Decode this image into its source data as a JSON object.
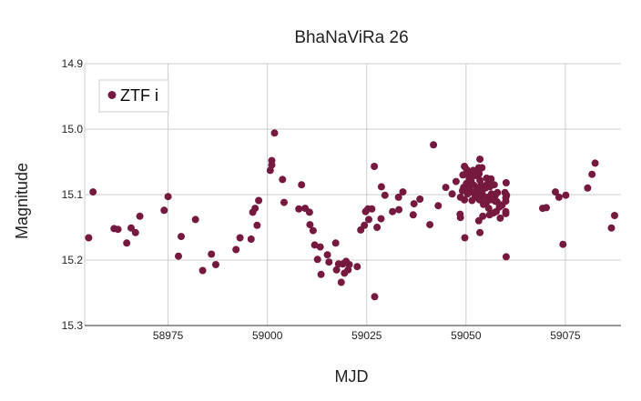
{
  "chart_data": {
    "type": "scatter",
    "title": "BhaNaViRa 26",
    "xlabel": "MJD",
    "ylabel": "Magnitude",
    "xlim": [
      58954,
      59089
    ],
    "ylim": [
      15.3,
      14.9
    ],
    "y_inverted": true,
    "grid": true,
    "legend_position": "top-left",
    "x_ticks": [
      {
        "value": 58975,
        "label": "58975"
      },
      {
        "value": 59000,
        "label": "59000"
      },
      {
        "value": 59025,
        "label": "59025"
      },
      {
        "value": 59050,
        "label": "59050"
      },
      {
        "value": 59075,
        "label": "59075"
      }
    ],
    "y_ticks": [
      {
        "value": 14.9,
        "label": "14.9"
      },
      {
        "value": 15.0,
        "label": "15.0"
      },
      {
        "value": 15.1,
        "label": "15.1"
      },
      {
        "value": 15.2,
        "label": "15.2"
      },
      {
        "value": 15.3,
        "label": "15.3"
      }
    ],
    "series": [
      {
        "name": "ZTF i",
        "color": "#76193f",
        "points": [
          [
            58955.0,
            15.166
          ],
          [
            58956.1,
            15.096
          ],
          [
            58961.4,
            15.152
          ],
          [
            58962.4,
            15.153
          ],
          [
            58964.6,
            15.174
          ],
          [
            58965.7,
            15.151
          ],
          [
            58966.8,
            15.158
          ],
          [
            58967.9,
            15.133
          ],
          [
            58974.0,
            15.124
          ],
          [
            58975.0,
            15.103
          ],
          [
            58977.6,
            15.194
          ],
          [
            58978.3,
            15.164
          ],
          [
            58981.9,
            15.138
          ],
          [
            58983.7,
            15.216
          ],
          [
            58985.9,
            15.191
          ],
          [
            58987.0,
            15.207
          ],
          [
            58992.1,
            15.184
          ],
          [
            58993.1,
            15.166
          ],
          [
            58995.9,
            15.168
          ],
          [
            58996.3,
            15.127
          ],
          [
            58996.9,
            15.121
          ],
          [
            58997.4,
            15.147
          ],
          [
            58997.8,
            15.109
          ],
          [
            59000.7,
            15.063
          ],
          [
            59001.1,
            15.048
          ],
          [
            59001.1,
            15.055
          ],
          [
            59001.8,
            15.006
          ],
          [
            59003.8,
            15.077
          ],
          [
            59004.2,
            15.112
          ],
          [
            59007.9,
            15.122
          ],
          [
            59008.6,
            15.085
          ],
          [
            59009.5,
            15.121
          ],
          [
            59010.6,
            15.127
          ],
          [
            59010.7,
            15.146
          ],
          [
            59011.5,
            15.155
          ],
          [
            59011.9,
            15.177
          ],
          [
            59012.6,
            15.199
          ],
          [
            59013.3,
            15.18
          ],
          [
            59013.5,
            15.222
          ],
          [
            59015.1,
            15.192
          ],
          [
            59015.5,
            15.203
          ],
          [
            59017.2,
            15.174
          ],
          [
            59017.4,
            15.215
          ],
          [
            59017.9,
            15.206
          ],
          [
            59018.6,
            15.234
          ],
          [
            59019.0,
            15.206
          ],
          [
            59019.4,
            15.22
          ],
          [
            59019.8,
            15.202
          ],
          [
            59020.3,
            15.215
          ],
          [
            59020.6,
            15.207
          ],
          [
            59022.6,
            15.21
          ],
          [
            59023.5,
            15.154
          ],
          [
            59024.4,
            15.147
          ],
          [
            59024.7,
            15.126
          ],
          [
            59025.3,
            15.122
          ],
          [
            59025.5,
            15.138
          ],
          [
            59026.3,
            15.122
          ],
          [
            59026.9,
            15.057
          ],
          [
            59027.0,
            15.256
          ],
          [
            59027.6,
            15.15
          ],
          [
            59028.6,
            15.137
          ],
          [
            59028.7,
            15.088
          ],
          [
            59029.6,
            15.101
          ],
          [
            59031.5,
            15.126
          ],
          [
            59033.0,
            15.104
          ],
          [
            59033.1,
            15.123
          ],
          [
            59034.1,
            15.096
          ],
          [
            59036.7,
            15.131
          ],
          [
            59036.9,
            15.114
          ],
          [
            59038.4,
            15.107
          ],
          [
            59040.9,
            15.146
          ],
          [
            59041.8,
            15.024
          ],
          [
            59043.0,
            15.117
          ],
          [
            59044.9,
            15.089
          ],
          [
            59046.5,
            15.099
          ],
          [
            59047.5,
            15.08
          ],
          [
            59048.5,
            15.13
          ],
          [
            59048.6,
            15.135
          ],
          [
            59048.6,
            15.104
          ],
          [
            59049.1,
            15.094
          ],
          [
            59049.2,
            15.07
          ],
          [
            59049.4,
            15.089
          ],
          [
            59049.6,
            15.108
          ],
          [
            59049.6,
            15.057
          ],
          [
            59049.7,
            15.166
          ],
          [
            59050.1,
            15.083
          ],
          [
            59050.2,
            15.062
          ],
          [
            59050.4,
            15.099
          ],
          [
            59050.4,
            15.091
          ],
          [
            59050.5,
            15.068
          ],
          [
            59050.8,
            15.075
          ],
          [
            59050.9,
            15.088
          ],
          [
            59051.3,
            15.082
          ],
          [
            59051.3,
            15.079
          ],
          [
            59051.5,
            15.109
          ],
          [
            59051.8,
            15.063
          ],
          [
            59051.8,
            15.097
          ],
          [
            59052.0,
            15.086
          ],
          [
            59052.2,
            15.069
          ],
          [
            59052.3,
            15.104
          ],
          [
            59052.4,
            15.071
          ],
          [
            59052.9,
            15.101
          ],
          [
            59052.9,
            15.092
          ],
          [
            59053.0,
            15.063
          ],
          [
            59053.2,
            15.14
          ],
          [
            59053.2,
            15.059
          ],
          [
            59053.3,
            15.068
          ],
          [
            59053.4,
            15.108
          ],
          [
            59053.5,
            15.078
          ],
          [
            59053.5,
            15.158
          ],
          [
            59053.5,
            15.046
          ],
          [
            59053.8,
            15.085
          ],
          [
            59054.0,
            15.059
          ],
          [
            59054.1,
            15.099
          ],
          [
            59054.2,
            15.133
          ],
          [
            59054.4,
            15.115
          ],
          [
            59054.5,
            15.09
          ],
          [
            59054.6,
            15.104
          ],
          [
            59054.9,
            15.09
          ],
          [
            59055.0,
            15.114
          ],
          [
            59055.2,
            15.075
          ],
          [
            59055.5,
            15.104
          ],
          [
            59055.5,
            15.083
          ],
          [
            59055.7,
            15.121
          ],
          [
            59055.9,
            15.131
          ],
          [
            59056.0,
            15.108
          ],
          [
            59056.0,
            15.088
          ],
          [
            59056.3,
            15.076
          ],
          [
            59056.4,
            15.099
          ],
          [
            59056.6,
            15.107
          ],
          [
            59056.8,
            15.102
          ],
          [
            59056.9,
            15.128
          ],
          [
            59057.1,
            15.085
          ],
          [
            59057.3,
            15.11
          ],
          [
            59057.3,
            15.102
          ],
          [
            59057.6,
            15.126
          ],
          [
            59057.8,
            15.111
          ],
          [
            59057.9,
            15.097
          ],
          [
            59058.4,
            15.119
          ],
          [
            59058.6,
            15.136
          ],
          [
            59059.1,
            15.116
          ],
          [
            59059.8,
            15.097
          ],
          [
            59060.0,
            15.105
          ],
          [
            59060.0,
            15.11
          ],
          [
            59060.0,
            15.126
          ],
          [
            59060.0,
            15.129
          ],
          [
            59060.1,
            15.195
          ],
          [
            59060.1,
            15.082
          ],
          [
            59060.2,
            15.101
          ],
          [
            59069.3,
            15.121
          ],
          [
            59070.2,
            15.12
          ],
          [
            59072.5,
            15.096
          ],
          [
            59073.4,
            15.104
          ],
          [
            59074.4,
            15.176
          ],
          [
            59075.1,
            15.101
          ],
          [
            59080.6,
            15.09
          ],
          [
            59081.7,
            15.069
          ],
          [
            59082.5,
            15.052
          ],
          [
            59086.6,
            15.151
          ],
          [
            59087.4,
            15.132
          ]
        ]
      }
    ]
  }
}
